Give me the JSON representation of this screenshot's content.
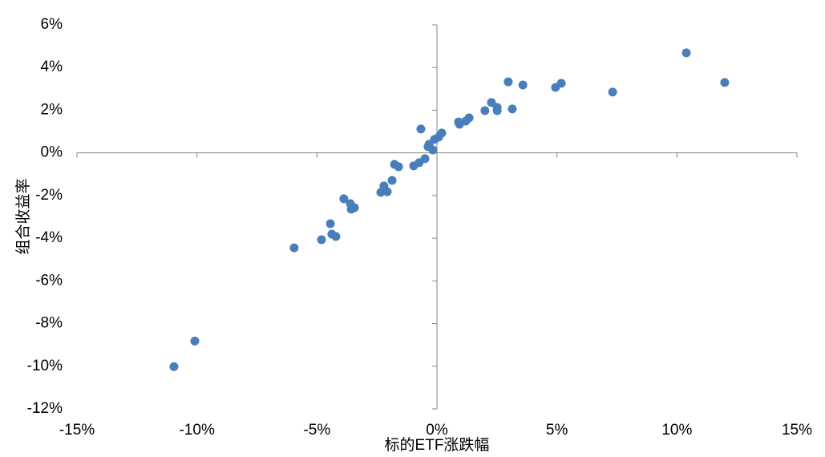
{
  "chart_data": {
    "type": "scatter",
    "x_label": "标的ETF涨跌幅",
    "y_label": "组合收益率",
    "color": "#4a7ebb",
    "xlim": [
      -15,
      15
    ],
    "xticks": [
      {
        "value": -15,
        "label": "-15%"
      },
      {
        "value": -10,
        "label": "-10%"
      },
      {
        "value": -5,
        "label": "-5%"
      },
      {
        "value": 0,
        "label": "0%"
      },
      {
        "value": 5,
        "label": "5%"
      },
      {
        "value": 10,
        "label": "10%"
      },
      {
        "value": 15,
        "label": "15%"
      }
    ],
    "ylim": [
      -12,
      6
    ],
    "yticks": [
      {
        "value": -12,
        "label": "-12%"
      },
      {
        "value": -10,
        "label": "-10%"
      },
      {
        "value": -8,
        "label": "-8%"
      },
      {
        "value": -6,
        "label": "-6%"
      },
      {
        "value": -4,
        "label": "-4%"
      },
      {
        "value": -2,
        "label": "-2%"
      },
      {
        "value": 0,
        "label": "0%"
      },
      {
        "value": 2,
        "label": "2%"
      },
      {
        "value": 4,
        "label": "4%"
      },
      {
        "value": 6,
        "label": "6%"
      }
    ],
    "x": [
      -10.96,
      -10.09,
      -5.95,
      -4.81,
      -4.44,
      -4.38,
      -4.21,
      -3.88,
      -3.61,
      -3.57,
      -3.44,
      -2.34,
      -2.21,
      -2.07,
      -1.87,
      -1.77,
      -1.6,
      -0.97,
      -0.74,
      -0.5,
      -0.67,
      -0.37,
      -0.33,
      -0.17,
      -0.1,
      0.07,
      0.2,
      0.9,
      0.94,
      1.2,
      1.34,
      2.0,
      2.27,
      2.51,
      2.51,
      3.14,
      2.97,
      3.58,
      4.94,
      5.18,
      7.32,
      10.39,
      11.99
    ],
    "values": [
      -10.02,
      -8.82,
      -4.45,
      -4.07,
      -3.32,
      -3.81,
      -3.92,
      -2.15,
      -2.38,
      -2.64,
      -2.57,
      -1.85,
      -1.55,
      -1.82,
      -1.29,
      -0.54,
      -0.65,
      -0.61,
      -0.46,
      -0.27,
      1.12,
      0.29,
      0.4,
      0.14,
      0.63,
      0.74,
      0.93,
      1.45,
      1.34,
      1.49,
      1.64,
      1.98,
      2.36,
      2.13,
      1.98,
      2.06,
      3.33,
      3.18,
      3.07,
      3.26,
      2.85,
      4.69,
      3.3
    ]
  }
}
